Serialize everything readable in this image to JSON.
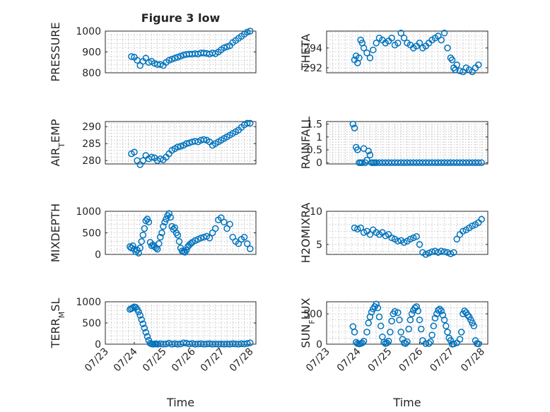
{
  "chart_data": [
    {
      "type": "scatter",
      "title": "Figure 3 low",
      "ylabel": "PRESSURE",
      "xlabel": "",
      "xticks_visible": false,
      "xlim": [
        0,
        5.2
      ],
      "ylim": [
        800,
        1000
      ],
      "yticks": [
        800,
        900,
        1000
      ],
      "yticklabels": [
        "800",
        "900",
        "1000"
      ],
      "x": [
        0.9,
        1.0,
        1.1,
        1.2,
        1.3,
        1.4,
        1.5,
        1.6,
        1.7,
        1.8,
        1.9,
        2.0,
        2.1,
        2.2,
        2.3,
        2.4,
        2.5,
        2.6,
        2.7,
        2.8,
        2.9,
        3.0,
        3.1,
        3.2,
        3.3,
        3.4,
        3.5,
        3.6,
        3.7,
        3.8,
        3.9,
        4.0,
        4.1,
        4.2,
        4.3,
        4.4,
        4.5,
        4.6,
        4.7,
        4.8,
        4.9,
        5.0
      ],
      "y": [
        878,
        875,
        860,
        835,
        855,
        870,
        850,
        855,
        845,
        840,
        840,
        835,
        850,
        860,
        865,
        870,
        875,
        880,
        885,
        888,
        890,
        890,
        892,
        890,
        895,
        895,
        893,
        890,
        895,
        892,
        900,
        910,
        920,
        925,
        930,
        945,
        955,
        965,
        975,
        985,
        995,
        1000
      ]
    },
    {
      "type": "scatter",
      "title": "",
      "ylabel": "THETA",
      "xlabel": "",
      "xticks_visible": false,
      "xlim": [
        0,
        5.2
      ],
      "ylim": [
        291.5,
        295.7
      ],
      "yticks": [
        292,
        294
      ],
      "yticklabels": [
        "292",
        "294"
      ],
      "x": [
        0.9,
        0.95,
        1.0,
        1.05,
        1.1,
        1.15,
        1.2,
        1.3,
        1.4,
        1.5,
        1.6,
        1.7,
        1.8,
        1.9,
        2.0,
        2.1,
        2.2,
        2.3,
        2.4,
        2.5,
        2.6,
        2.7,
        2.8,
        2.9,
        3.0,
        3.1,
        3.2,
        3.3,
        3.4,
        3.5,
        3.6,
        3.7,
        3.8,
        3.9,
        4.0,
        4.05,
        4.1,
        4.15,
        4.2,
        4.3,
        4.4,
        4.5,
        4.6,
        4.7,
        4.8,
        4.9
      ],
      "y": [
        292.8,
        293.2,
        292.5,
        293.0,
        294.8,
        294.5,
        294.0,
        293.5,
        293.0,
        293.8,
        294.5,
        295.0,
        294.8,
        294.5,
        294.7,
        295.0,
        294.3,
        294.5,
        295.5,
        295.0,
        294.5,
        294.3,
        294.0,
        294.2,
        294.5,
        294.0,
        294.2,
        294.5,
        294.8,
        295.0,
        295.2,
        294.8,
        295.5,
        294.0,
        293.0,
        292.8,
        292.0,
        291.8,
        292.3,
        291.7,
        291.6,
        292.0,
        291.8,
        291.6,
        292.0,
        292.3
      ]
    },
    {
      "type": "scatter",
      "title": "",
      "ylabel": "AIR_TEMP",
      "xlabel": "",
      "xticks_visible": false,
      "xlim": [
        0,
        5.2
      ],
      "ylim": [
        279,
        291.5
      ],
      "yticks": [
        280,
        285,
        290
      ],
      "yticklabels": [
        "280",
        "285",
        "290"
      ],
      "x": [
        0.9,
        1.0,
        1.1,
        1.2,
        1.3,
        1.4,
        1.5,
        1.6,
        1.7,
        1.8,
        1.9,
        2.0,
        2.1,
        2.2,
        2.3,
        2.4,
        2.5,
        2.6,
        2.7,
        2.8,
        2.9,
        3.0,
        3.1,
        3.2,
        3.3,
        3.4,
        3.5,
        3.6,
        3.7,
        3.8,
        3.9,
        4.0,
        4.1,
        4.2,
        4.3,
        4.4,
        4.5,
        4.6,
        4.7,
        4.8,
        4.9,
        5.0
      ],
      "y": [
        282,
        282.5,
        280,
        278.8,
        280,
        281.5,
        280.5,
        281,
        280.8,
        280,
        280.5,
        280.2,
        281,
        282,
        283,
        283.5,
        284,
        284.2,
        284.5,
        285,
        285.2,
        285.5,
        285.7,
        285.5,
        286,
        286.2,
        286,
        285.5,
        284.5,
        285,
        285.5,
        286,
        286.5,
        287,
        287.5,
        288,
        288.5,
        289,
        289.8,
        290.5,
        291,
        291
      ]
    },
    {
      "type": "scatter",
      "title": "",
      "ylabel": "RAINFALL",
      "xlabel": "",
      "xticks_visible": false,
      "xlim": [
        0,
        5.2
      ],
      "ylim": [
        -0.05,
        1.6
      ],
      "yticks": [
        0,
        0.5,
        1,
        1.5
      ],
      "yticklabels": [
        "0",
        "0.5",
        "1",
        "1.5"
      ],
      "x": [
        0.85,
        0.9,
        0.95,
        1.0,
        1.05,
        1.1,
        1.15,
        1.2,
        1.25,
        1.3,
        1.35,
        1.4,
        1.45,
        1.5,
        1.55,
        1.6,
        1.7,
        1.8,
        1.9,
        2.0,
        2.1,
        2.2,
        2.3,
        2.4,
        2.5,
        2.6,
        2.7,
        2.8,
        2.9,
        3.0,
        3.1,
        3.2,
        3.3,
        3.4,
        3.5,
        3.6,
        3.7,
        3.8,
        3.9,
        4.0,
        4.1,
        4.2,
        4.3,
        4.4,
        4.5,
        4.6,
        4.7,
        4.8,
        4.9,
        5.0
      ],
      "y": [
        1.5,
        1.35,
        0.6,
        0.5,
        0.0,
        0.0,
        0.0,
        0.55,
        0.0,
        0.1,
        0.45,
        0.3,
        0.0,
        0.0,
        0.0,
        0.0,
        0.0,
        0.0,
        0.0,
        0.0,
        0.0,
        0.0,
        0.0,
        0.0,
        0.0,
        0.0,
        0.0,
        0.0,
        0.0,
        0.0,
        0.0,
        0.0,
        0.0,
        0.0,
        0.0,
        0.0,
        0.0,
        0.0,
        0.0,
        0.0,
        0.0,
        0.0,
        0.0,
        0.0,
        0.0,
        0.0,
        0.0,
        0.0,
        0.0,
        0.0
      ]
    },
    {
      "type": "scatter",
      "title": "",
      "ylabel": "MIXDEPTH",
      "xlabel": "",
      "xticks_visible": false,
      "xlim": [
        0,
        5.2
      ],
      "ylim": [
        0,
        1000
      ],
      "yticks": [
        0,
        500,
        1000
      ],
      "yticklabels": [
        "0",
        "500",
        "1000"
      ],
      "x": [
        0.85,
        0.9,
        0.95,
        1.0,
        1.05,
        1.1,
        1.15,
        1.2,
        1.25,
        1.3,
        1.35,
        1.4,
        1.45,
        1.5,
        1.55,
        1.6,
        1.65,
        1.7,
        1.75,
        1.8,
        1.85,
        1.9,
        1.95,
        2.0,
        2.05,
        2.1,
        2.15,
        2.2,
        2.25,
        2.3,
        2.35,
        2.4,
        2.45,
        2.5,
        2.55,
        2.6,
        2.65,
        2.7,
        2.75,
        2.8,
        2.85,
        2.9,
        2.95,
        3.0,
        3.1,
        3.2,
        3.3,
        3.4,
        3.5,
        3.6,
        3.7,
        3.8,
        3.9,
        4.0,
        4.1,
        4.2,
        4.3,
        4.4,
        4.5,
        4.6,
        4.7,
        4.8,
        4.9,
        5.0
      ],
      "y": [
        180,
        150,
        200,
        120,
        60,
        100,
        30,
        150,
        300,
        450,
        600,
        780,
        820,
        750,
        280,
        200,
        220,
        180,
        150,
        120,
        250,
        400,
        500,
        650,
        750,
        820,
        900,
        950,
        860,
        650,
        580,
        620,
        500,
        450,
        300,
        150,
        80,
        60,
        50,
        100,
        180,
        220,
        250,
        280,
        320,
        350,
        380,
        400,
        420,
        380,
        500,
        600,
        800,
        850,
        750,
        600,
        700,
        400,
        300,
        250,
        350,
        400,
        250,
        130
      ]
    },
    {
      "type": "scatter",
      "title": "",
      "ylabel": "H2OMIXRA",
      "xlabel": "",
      "xticks_visible": false,
      "xlim": [
        0,
        5.2
      ],
      "ylim": [
        3.5,
        10
      ],
      "yticks": [
        5,
        10
      ],
      "yticklabels": [
        "5",
        "10"
      ],
      "x": [
        0.9,
        1.0,
        1.1,
        1.2,
        1.3,
        1.4,
        1.5,
        1.6,
        1.7,
        1.8,
        1.9,
        2.0,
        2.1,
        2.2,
        2.3,
        2.4,
        2.5,
        2.6,
        2.7,
        2.8,
        2.9,
        3.0,
        3.1,
        3.2,
        3.3,
        3.4,
        3.5,
        3.6,
        3.7,
        3.8,
        3.9,
        4.0,
        4.1,
        4.2,
        4.3,
        4.4,
        4.5,
        4.6,
        4.7,
        4.8,
        4.9,
        5.0
      ],
      "y": [
        7.5,
        7.3,
        7.5,
        6.8,
        7.0,
        6.5,
        7.2,
        6.8,
        6.5,
        6.8,
        6.3,
        6.5,
        6.0,
        5.8,
        5.5,
        5.6,
        5.3,
        5.5,
        5.8,
        6.0,
        6.2,
        5.0,
        3.8,
        3.5,
        3.7,
        3.9,
        4.0,
        3.8,
        4.0,
        3.9,
        3.8,
        3.6,
        3.8,
        5.8,
        6.5,
        7.0,
        7.2,
        7.5,
        7.8,
        8.0,
        8.3,
        8.8
      ]
    },
    {
      "type": "scatter",
      "title": "",
      "ylabel": "TERR_MSL",
      "xlabel": "Time",
      "xticks_visible": true,
      "xlim": [
        0,
        5.2
      ],
      "xticks": [
        0,
        1,
        2,
        3,
        4,
        5
      ],
      "xticklabels": [
        "07/23",
        "07/24",
        "07/25",
        "07/26",
        "07/27",
        "07/28"
      ],
      "ylim": [
        0,
        1000
      ],
      "yticks": [
        0,
        500,
        1000
      ],
      "yticklabels": [
        "0",
        "500",
        "1000"
      ],
      "x": [
        0.85,
        0.9,
        0.95,
        1.0,
        1.05,
        1.1,
        1.15,
        1.2,
        1.25,
        1.3,
        1.35,
        1.4,
        1.45,
        1.5,
        1.55,
        1.6,
        1.65,
        1.7,
        1.75,
        1.8,
        1.9,
        2.0,
        2.1,
        2.2,
        2.3,
        2.4,
        2.5,
        2.6,
        2.7,
        2.8,
        2.9,
        3.0,
        3.1,
        3.2,
        3.3,
        3.4,
        3.5,
        3.6,
        3.7,
        3.8,
        3.9,
        4.0,
        4.1,
        4.2,
        4.3,
        4.4,
        4.5,
        4.6,
        4.7,
        4.8,
        4.9,
        5.0
      ],
      "y": [
        820,
        840,
        860,
        880,
        870,
        820,
        760,
        680,
        580,
        480,
        380,
        280,
        180,
        90,
        20,
        5,
        0,
        5,
        10,
        0,
        10,
        0,
        5,
        20,
        0,
        10,
        0,
        5,
        30,
        20,
        5,
        15,
        0,
        5,
        10,
        0,
        5,
        10,
        0,
        5,
        0,
        5,
        0,
        5,
        0,
        10,
        5,
        0,
        10,
        5,
        15,
        30
      ]
    },
    {
      "type": "scatter",
      "title": "",
      "ylabel": "SUN_FLUX",
      "xlabel": "Time",
      "xticks_visible": true,
      "xlim": [
        0,
        5.2
      ],
      "xticks": [
        0,
        1,
        2,
        3,
        4,
        5
      ],
      "xticklabels": [
        "07/23",
        "07/24",
        "07/25",
        "07/26",
        "07/27",
        "07/28"
      ],
      "ylim": [
        0,
        700
      ],
      "yticks": [
        0,
        500
      ],
      "yticklabels": [
        "0",
        "500"
      ],
      "x": [
        0.85,
        0.9,
        0.95,
        1.0,
        1.05,
        1.1,
        1.15,
        1.2,
        1.3,
        1.35,
        1.4,
        1.45,
        1.5,
        1.55,
        1.6,
        1.65,
        1.7,
        1.75,
        1.8,
        1.85,
        1.9,
        1.95,
        2.0,
        2.05,
        2.1,
        2.15,
        2.2,
        2.3,
        2.35,
        2.4,
        2.45,
        2.5,
        2.55,
        2.6,
        2.65,
        2.7,
        2.75,
        2.8,
        2.85,
        2.9,
        2.95,
        3.0,
        3.05,
        3.1,
        3.2,
        3.3,
        3.35,
        3.4,
        3.45,
        3.5,
        3.55,
        3.6,
        3.65,
        3.7,
        3.75,
        3.8,
        3.85,
        3.9,
        3.95,
        4.0,
        4.05,
        4.1,
        4.2,
        4.3,
        4.35,
        4.4,
        4.45,
        4.5,
        4.55,
        4.6,
        4.65,
        4.7,
        4.75,
        4.8,
        4.85,
        4.9
      ],
      "y": [
        290,
        200,
        30,
        10,
        5,
        10,
        20,
        50,
        200,
        350,
        450,
        530,
        580,
        620,
        660,
        600,
        450,
        300,
        120,
        30,
        10,
        20,
        50,
        200,
        380,
        500,
        540,
        520,
        400,
        200,
        80,
        20,
        10,
        40,
        250,
        400,
        500,
        560,
        600,
        620,
        550,
        400,
        250,
        60,
        10,
        10,
        40,
        150,
        300,
        430,
        500,
        560,
        580,
        550,
        480,
        400,
        300,
        200,
        100,
        60,
        0,
        5,
        20,
        80,
        200,
        500,
        550,
        520,
        480,
        450,
        400,
        350,
        300,
        60,
        10,
        5
      ]
    }
  ]
}
